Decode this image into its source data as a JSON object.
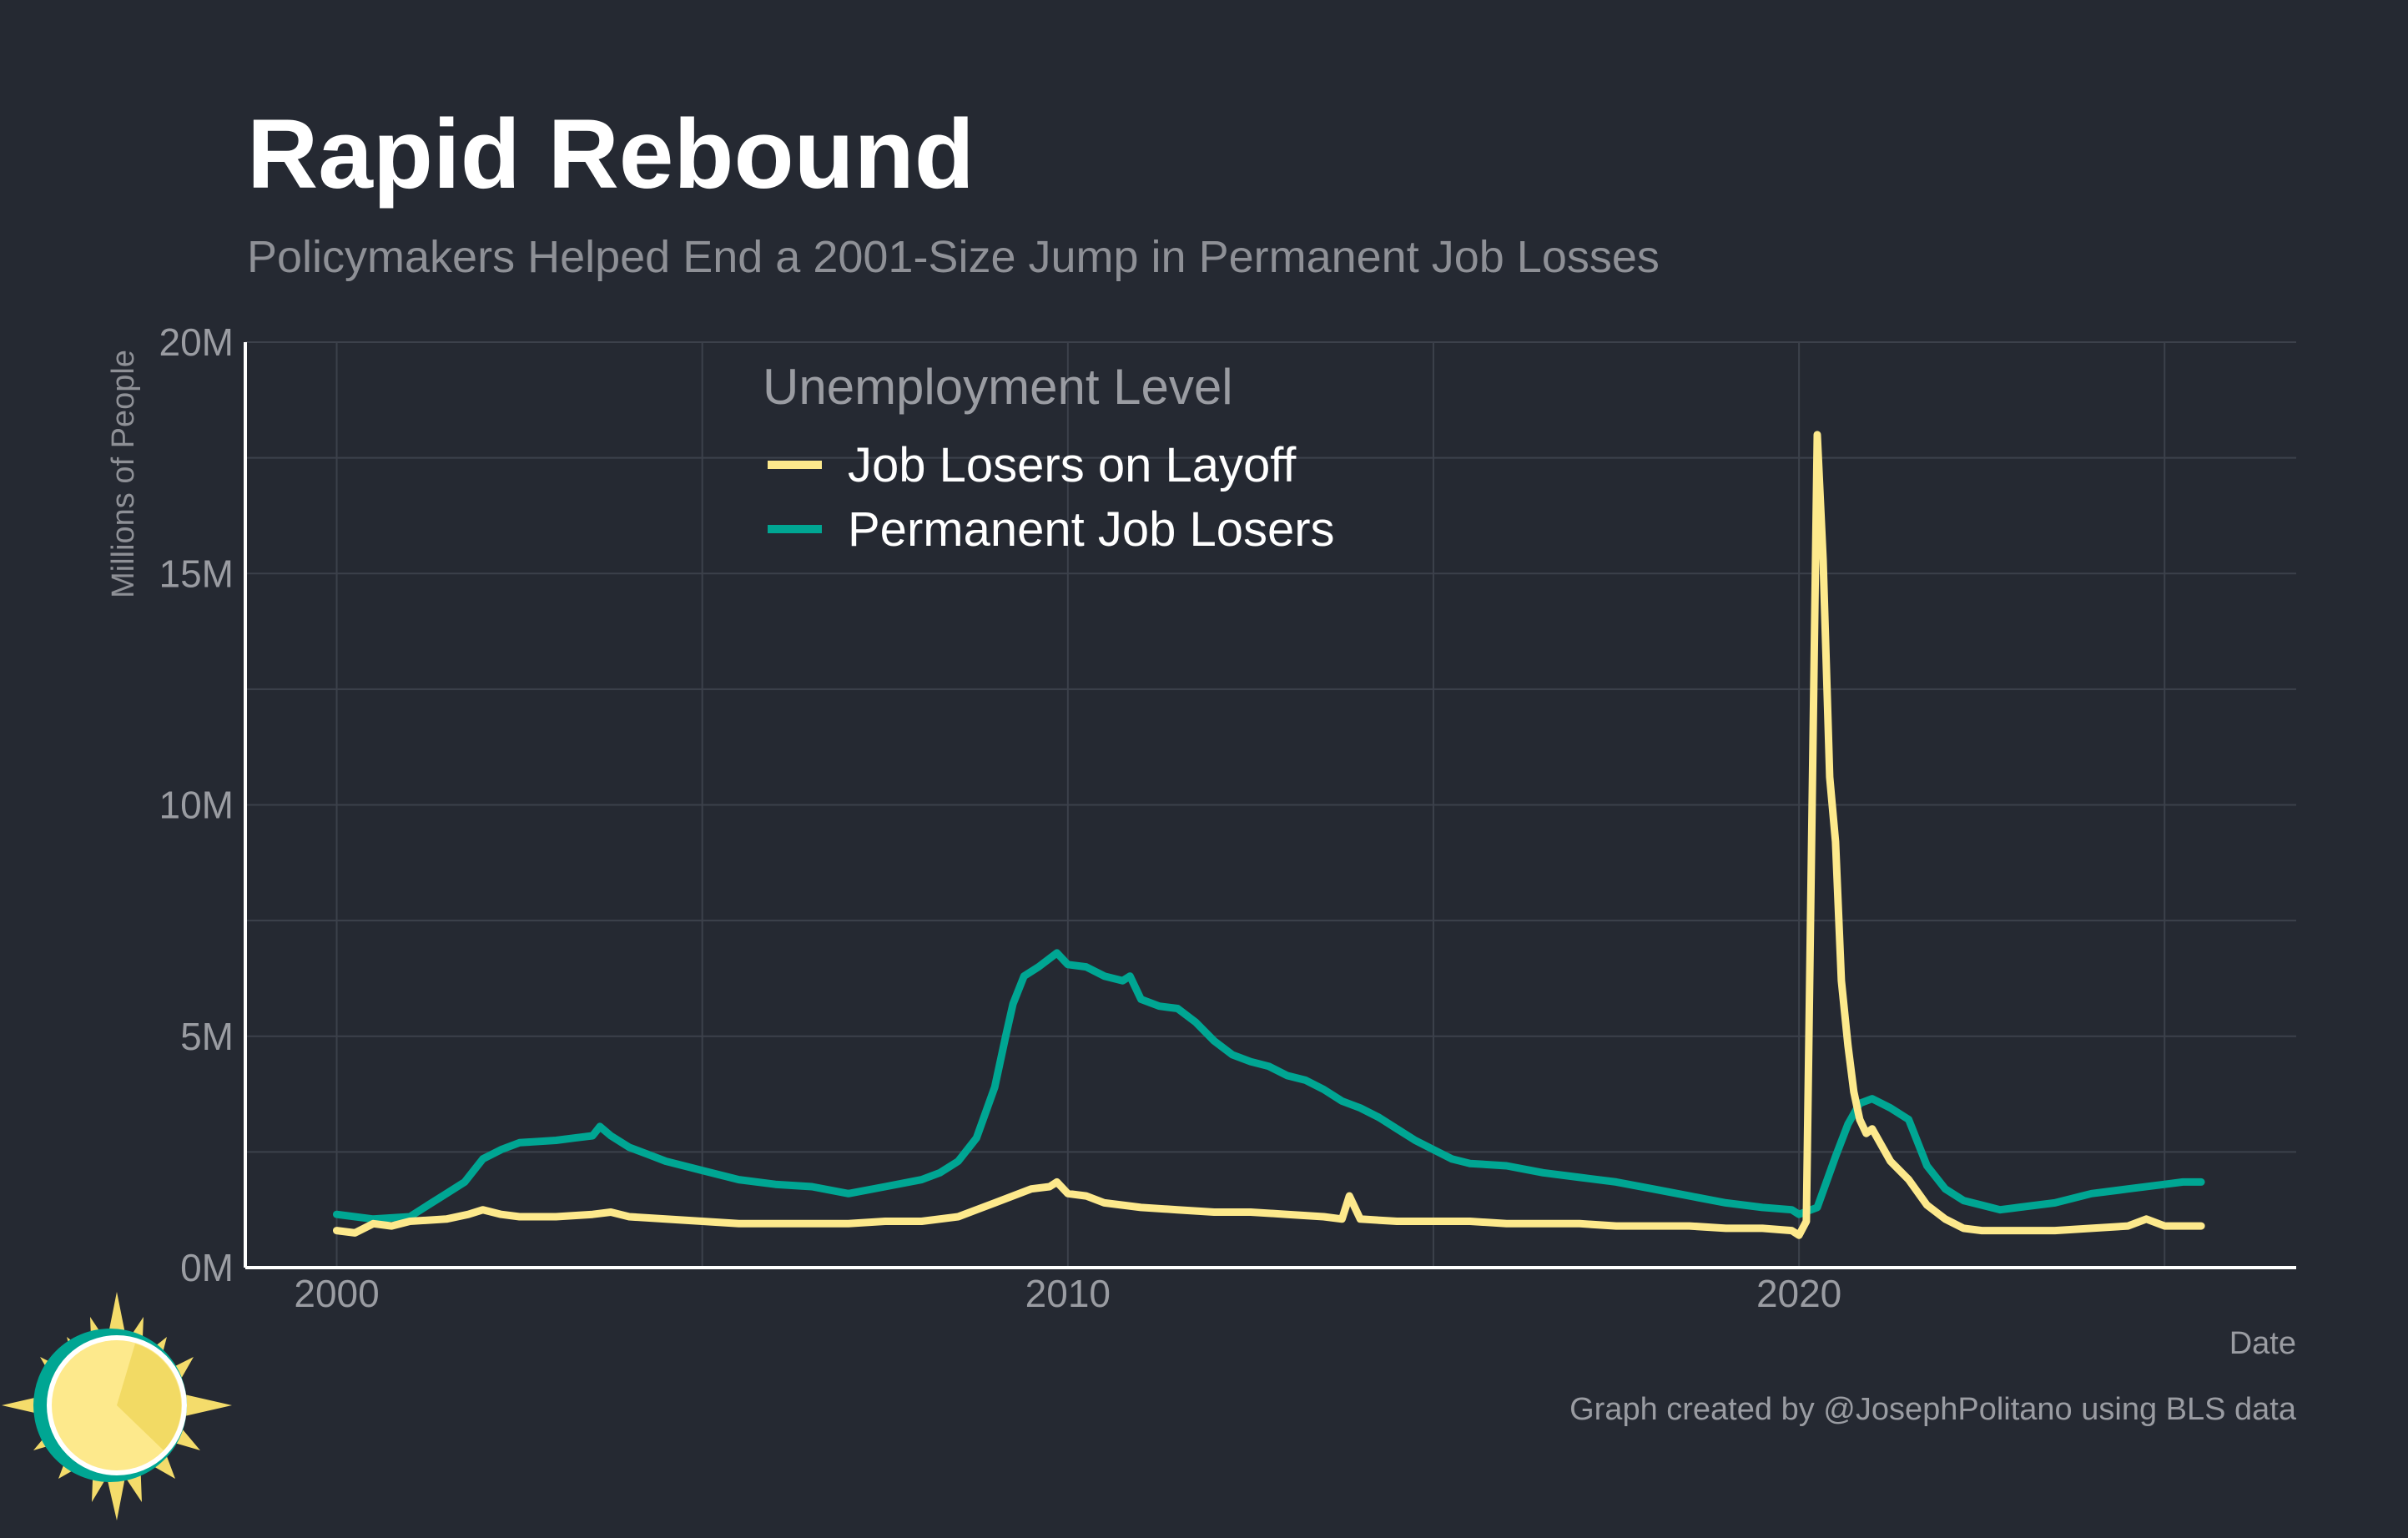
{
  "colors": {
    "background": "#252932",
    "grid": "#3c414b",
    "axis": "#ffffff",
    "title": "#ffffff",
    "subtitle": "#8e9096",
    "muted": "#9a9ca2",
    "layoff": "#fde98c",
    "permanent": "#00a693"
  },
  "title": "Rapid Rebound",
  "subtitle": "Policymakers Helped End a 2001-Size Jump in Permanent Job Losses",
  "caption": "Graph created by @JosephPolitano using BLS data",
  "logo_icon": "sun-logo-icon",
  "chart_data": {
    "type": "line",
    "xlabel": "Date",
    "ylabel": "Millions of People",
    "xlim": [
      1998.75,
      2026.8
    ],
    "ylim": [
      0,
      20
    ],
    "x_ticks": [
      2000,
      2010,
      2020
    ],
    "x_tick_labels": [
      "2000",
      "2010",
      "2020"
    ],
    "y_ticks": [
      0,
      5,
      10,
      15,
      20
    ],
    "y_tick_labels": [
      "0M",
      "5M",
      "10M",
      "15M",
      "20M"
    ],
    "grid": true,
    "legend": {
      "title": "Unemployment Level",
      "placement": "top-center"
    },
    "series": [
      {
        "name": "Job Losers on Layoff",
        "color": "#fde98c",
        "points": [
          [
            2000.0,
            0.8
          ],
          [
            2000.25,
            0.75
          ],
          [
            2000.5,
            0.95
          ],
          [
            2000.75,
            0.9
          ],
          [
            2001.0,
            1.0
          ],
          [
            2001.5,
            1.05
          ],
          [
            2001.8,
            1.15
          ],
          [
            2002.0,
            1.25
          ],
          [
            2002.25,
            1.15
          ],
          [
            2002.5,
            1.1
          ],
          [
            2003.0,
            1.1
          ],
          [
            2003.5,
            1.15
          ],
          [
            2003.75,
            1.2
          ],
          [
            2004.0,
            1.1
          ],
          [
            2004.5,
            1.05
          ],
          [
            2005.0,
            1.0
          ],
          [
            2005.5,
            0.95
          ],
          [
            2006.0,
            0.95
          ],
          [
            2006.5,
            0.95
          ],
          [
            2007.0,
            0.95
          ],
          [
            2007.5,
            1.0
          ],
          [
            2008.0,
            1.0
          ],
          [
            2008.5,
            1.1
          ],
          [
            2008.75,
            1.25
          ],
          [
            2009.0,
            1.4
          ],
          [
            2009.25,
            1.55
          ],
          [
            2009.5,
            1.7
          ],
          [
            2009.75,
            1.75
          ],
          [
            2009.85,
            1.85
          ],
          [
            2010.0,
            1.6
          ],
          [
            2010.25,
            1.55
          ],
          [
            2010.5,
            1.4
          ],
          [
            2011.0,
            1.3
          ],
          [
            2011.5,
            1.25
          ],
          [
            2012.0,
            1.2
          ],
          [
            2012.5,
            1.2
          ],
          [
            2013.0,
            1.15
          ],
          [
            2013.5,
            1.1
          ],
          [
            2013.75,
            1.05
          ],
          [
            2013.85,
            1.55
          ],
          [
            2014.0,
            1.05
          ],
          [
            2014.5,
            1.0
          ],
          [
            2015.0,
            1.0
          ],
          [
            2015.5,
            1.0
          ],
          [
            2016.0,
            0.95
          ],
          [
            2016.5,
            0.95
          ],
          [
            2017.0,
            0.95
          ],
          [
            2017.5,
            0.9
          ],
          [
            2018.0,
            0.9
          ],
          [
            2018.5,
            0.9
          ],
          [
            2019.0,
            0.85
          ],
          [
            2019.5,
            0.85
          ],
          [
            2019.9,
            0.8
          ],
          [
            2020.0,
            0.7
          ],
          [
            2020.1,
            1.0
          ],
          [
            2020.25,
            18.0
          ],
          [
            2020.33,
            15.3
          ],
          [
            2020.42,
            10.6
          ],
          [
            2020.5,
            9.2
          ],
          [
            2020.58,
            6.2
          ],
          [
            2020.67,
            4.8
          ],
          [
            2020.75,
            3.8
          ],
          [
            2020.83,
            3.2
          ],
          [
            2020.92,
            2.9
          ],
          [
            2021.0,
            3.0
          ],
          [
            2021.25,
            2.3
          ],
          [
            2021.5,
            1.9
          ],
          [
            2021.75,
            1.35
          ],
          [
            2022.0,
            1.05
          ],
          [
            2022.25,
            0.85
          ],
          [
            2022.5,
            0.8
          ],
          [
            2023.0,
            0.8
          ],
          [
            2023.5,
            0.8
          ],
          [
            2024.0,
            0.85
          ],
          [
            2024.5,
            0.9
          ],
          [
            2024.75,
            1.05
          ],
          [
            2025.0,
            0.9
          ],
          [
            2025.5,
            0.9
          ]
        ]
      },
      {
        "name": "Permanent Job Losers",
        "color": "#00a693",
        "points": [
          [
            2000.0,
            1.15
          ],
          [
            2000.5,
            1.05
          ],
          [
            2001.0,
            1.1
          ],
          [
            2001.25,
            1.35
          ],
          [
            2001.5,
            1.6
          ],
          [
            2001.75,
            1.85
          ],
          [
            2002.0,
            2.35
          ],
          [
            2002.25,
            2.55
          ],
          [
            2002.5,
            2.7
          ],
          [
            2003.0,
            2.75
          ],
          [
            2003.25,
            2.8
          ],
          [
            2003.5,
            2.85
          ],
          [
            2003.6,
            3.05
          ],
          [
            2003.75,
            2.85
          ],
          [
            2004.0,
            2.6
          ],
          [
            2004.25,
            2.45
          ],
          [
            2004.5,
            2.3
          ],
          [
            2005.0,
            2.1
          ],
          [
            2005.5,
            1.9
          ],
          [
            2006.0,
            1.8
          ],
          [
            2006.5,
            1.75
          ],
          [
            2007.0,
            1.6
          ],
          [
            2007.5,
            1.75
          ],
          [
            2008.0,
            1.9
          ],
          [
            2008.25,
            2.05
          ],
          [
            2008.5,
            2.3
          ],
          [
            2008.75,
            2.8
          ],
          [
            2009.0,
            3.9
          ],
          [
            2009.15,
            5.0
          ],
          [
            2009.25,
            5.7
          ],
          [
            2009.4,
            6.3
          ],
          [
            2009.6,
            6.5
          ],
          [
            2009.85,
            6.8
          ],
          [
            2010.0,
            6.55
          ],
          [
            2010.25,
            6.5
          ],
          [
            2010.5,
            6.3
          ],
          [
            2010.75,
            6.2
          ],
          [
            2010.85,
            6.3
          ],
          [
            2011.0,
            5.8
          ],
          [
            2011.25,
            5.65
          ],
          [
            2011.5,
            5.6
          ],
          [
            2011.75,
            5.3
          ],
          [
            2012.0,
            4.9
          ],
          [
            2012.25,
            4.6
          ],
          [
            2012.5,
            4.45
          ],
          [
            2012.75,
            4.35
          ],
          [
            2013.0,
            4.15
          ],
          [
            2013.25,
            4.05
          ],
          [
            2013.5,
            3.85
          ],
          [
            2013.75,
            3.6
          ],
          [
            2014.0,
            3.45
          ],
          [
            2014.25,
            3.25
          ],
          [
            2014.5,
            3.0
          ],
          [
            2014.75,
            2.75
          ],
          [
            2015.0,
            2.55
          ],
          [
            2015.25,
            2.35
          ],
          [
            2015.5,
            2.25
          ],
          [
            2016.0,
            2.2
          ],
          [
            2016.5,
            2.05
          ],
          [
            2017.0,
            1.95
          ],
          [
            2017.5,
            1.85
          ],
          [
            2018.0,
            1.7
          ],
          [
            2018.5,
            1.55
          ],
          [
            2019.0,
            1.4
          ],
          [
            2019.5,
            1.3
          ],
          [
            2019.9,
            1.25
          ],
          [
            2020.0,
            1.15
          ],
          [
            2020.25,
            1.3
          ],
          [
            2020.5,
            2.4
          ],
          [
            2020.67,
            3.1
          ],
          [
            2020.83,
            3.55
          ],
          [
            2021.0,
            3.65
          ],
          [
            2021.25,
            3.45
          ],
          [
            2021.5,
            3.2
          ],
          [
            2021.75,
            2.2
          ],
          [
            2022.0,
            1.7
          ],
          [
            2022.25,
            1.45
          ],
          [
            2022.5,
            1.35
          ],
          [
            2022.75,
            1.25
          ],
          [
            2023.0,
            1.3
          ],
          [
            2023.5,
            1.4
          ],
          [
            2024.0,
            1.6
          ],
          [
            2024.5,
            1.7
          ],
          [
            2025.0,
            1.8
          ],
          [
            2025.25,
            1.85
          ],
          [
            2025.5,
            1.85
          ]
        ]
      }
    ]
  }
}
